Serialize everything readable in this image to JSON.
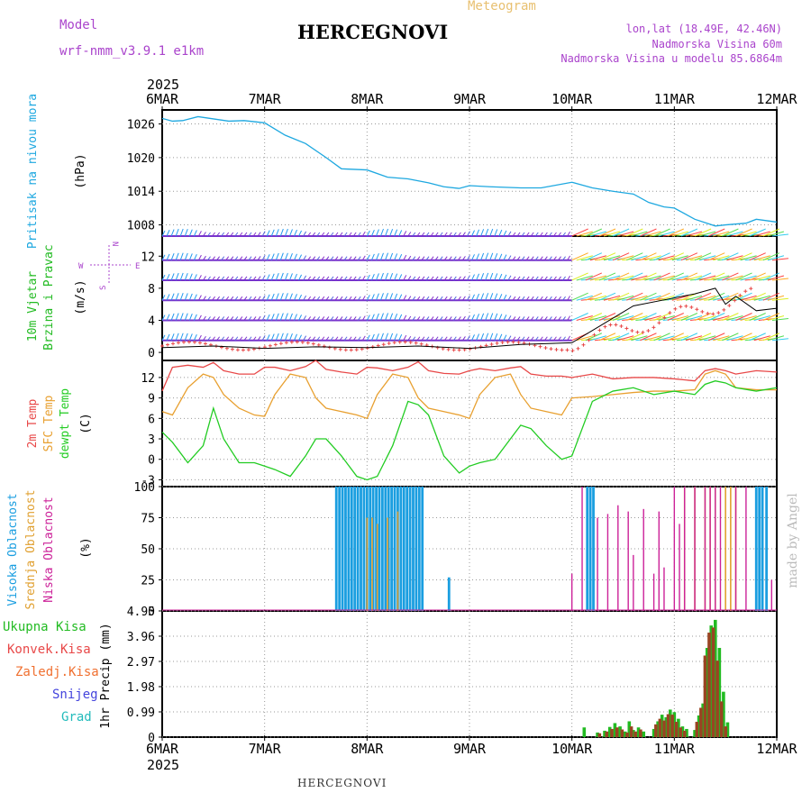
{
  "header": {
    "model_label": "Model",
    "model_name": "wrf-nmm_v3.9.1 e1km",
    "meteogram_label": "Meteogram",
    "station": "HERCEGNOVI",
    "lonlat": "lon,lat (18.49E, 42.46N)",
    "elevation": "Nadmorska Visina 60m",
    "model_elevation": "Nadmorska Visina u modelu 85.6864m",
    "footer_station": "HERCEGNOVI",
    "watermark": "made by Angel"
  },
  "colors": {
    "pressure": "#1ea8e0",
    "wind_label": "#22bb22",
    "t2m": "#e84848",
    "sfc": "#e8a030",
    "dew": "#22cc22",
    "high_cloud": "#1a9ee0",
    "mid_cloud": "#e0a030",
    "low_cloud": "#cc2299",
    "total_rain": "#22bb22",
    "conv_rain": "#e84848",
    "frozen_rain": "#f07030",
    "snow": "#4444dd",
    "hail": "#22bbbb",
    "compass": "#aa44cc"
  },
  "time_axis": {
    "top_year": "2025",
    "bottom_year": "2025",
    "labels": [
      "6MAR",
      "7MAR",
      "8MAR",
      "9MAR",
      "10MAR",
      "11MAR",
      "12MAR"
    ]
  },
  "chart_data": [
    {
      "type": "line",
      "panel": "pressure",
      "ylabel_series": "Pritisak na nivou mora",
      "ylabel_unit": "(hPa)",
      "yticks": [
        "1026",
        "1020",
        "1014",
        "1008"
      ],
      "ylim": [
        1006,
        1028.5
      ],
      "x_days": [
        0,
        0.1,
        0.2,
        0.35,
        0.5,
        0.65,
        0.8,
        1.0,
        1.2,
        1.4,
        1.6,
        1.75,
        2.0,
        2.2,
        2.4,
        2.6,
        2.75,
        2.9,
        3.0,
        3.2,
        3.5,
        3.7,
        4.0,
        4.2,
        4.4,
        4.6,
        4.75,
        4.9,
        5.0,
        5.2,
        5.4,
        5.5,
        5.7,
        5.8,
        6.0
      ],
      "series": [
        {
          "values": [
            1027,
            1026.5,
            1026.6,
            1027.3,
            1026.9,
            1026.5,
            1026.6,
            1026.2,
            1024.0,
            1022.5,
            1020.0,
            1018.0,
            1017.8,
            1016.5,
            1016.2,
            1015.5,
            1014.8,
            1014.5,
            1015.0,
            1014.8,
            1014.6,
            1014.6,
            1015.6,
            1014.6,
            1014.0,
            1013.5,
            1012.0,
            1011.2,
            1011.0,
            1009.0,
            1007.8,
            1008.0,
            1008.3,
            1009.0,
            1008.5
          ]
        }
      ]
    },
    {
      "type": "line",
      "panel": "wind",
      "ylabel_series": "10m Vjetar",
      "ylabel_series2": "Brzina i Pravac",
      "ylabel_unit": "(m/s)",
      "compass": {
        "n": "N",
        "w": "W",
        "e": "E",
        "s": "S"
      },
      "yticks": [
        "12",
        "8",
        "4",
        "0"
      ],
      "ylim": [
        -1,
        14.5
      ],
      "x_days": [
        0,
        0.5,
        1.0,
        1.5,
        2.0,
        2.5,
        3.0,
        3.5,
        4.0,
        4.3,
        4.6,
        5.0,
        5.2,
        5.4,
        5.5,
        5.6,
        5.8,
        6.0
      ],
      "series": [
        {
          "name": "speed_black",
          "values": [
            0.6,
            0.8,
            0.5,
            0.7,
            0.6,
            0.8,
            0.5,
            1.0,
            1.2,
            3.5,
            5.8,
            6.8,
            7.3,
            8.0,
            6.0,
            7.0,
            5.2,
            5.5
          ]
        }
      ]
    },
    {
      "type": "line",
      "panel": "temperature",
      "ylabel_series": "2m Temp",
      "ylabel_series2": "SFC Temp",
      "ylabel_series3": "dewpt Temp",
      "ylabel_unit": "(C)",
      "yticks": [
        "12",
        "9",
        "6",
        "3",
        "0",
        "-3"
      ],
      "ylim": [
        -4,
        14.5
      ],
      "x_days": [
        0,
        0.1,
        0.25,
        0.4,
        0.5,
        0.6,
        0.75,
        0.9,
        1.0,
        1.1,
        1.25,
        1.4,
        1.5,
        1.6,
        1.75,
        1.9,
        2.0,
        2.1,
        2.25,
        2.4,
        2.5,
        2.6,
        2.75,
        2.9,
        3.0,
        3.1,
        3.25,
        3.4,
        3.5,
        3.6,
        3.75,
        3.9,
        4.0,
        4.2,
        4.4,
        4.6,
        4.8,
        5.0,
        5.2,
        5.3,
        5.4,
        5.5,
        5.6,
        5.8,
        6.0
      ],
      "series": [
        {
          "name": "2m Temp",
          "values": [
            10,
            13.5,
            13.8,
            13.5,
            14.2,
            13.0,
            12.5,
            12.5,
            13.5,
            13.5,
            13.0,
            13.6,
            14.5,
            13.2,
            12.8,
            12.5,
            13.5,
            13.4,
            13.0,
            13.5,
            14.3,
            13.0,
            12.6,
            12.5,
            13.0,
            13.3,
            13.0,
            13.4,
            13.6,
            12.5,
            12.2,
            12.2,
            12.0,
            12.5,
            11.8,
            12.0,
            12.0,
            11.8,
            11.5,
            13.0,
            13.3,
            13.0,
            12.5,
            13.0,
            12.8
          ]
        },
        {
          "name": "SFC Temp",
          "values": [
            7,
            6.5,
            10.5,
            12.5,
            12.0,
            9.5,
            7.5,
            6.5,
            6.3,
            9.5,
            12.5,
            12.0,
            9.0,
            7.5,
            7.0,
            6.5,
            6.0,
            9.5,
            12.5,
            12.0,
            9.0,
            7.5,
            7.0,
            6.5,
            6.0,
            9.5,
            12.0,
            12.5,
            9.5,
            7.5,
            7.0,
            6.5,
            9.0,
            9.2,
            9.5,
            9.8,
            10.0,
            10.0,
            10.2,
            12.5,
            13.0,
            12.5,
            10.5,
            10.2,
            10.2
          ]
        },
        {
          "name": "dewpt Temp",
          "values": [
            4,
            2.5,
            -0.5,
            2.0,
            7.5,
            3.0,
            -0.5,
            -0.5,
            -1.0,
            -1.5,
            -2.5,
            0.5,
            3.0,
            3.0,
            0.5,
            -2.5,
            -3.0,
            -2.5,
            2.0,
            8.5,
            8.0,
            6.5,
            0.5,
            -2.0,
            -1.0,
            -0.5,
            0.0,
            3.0,
            5.0,
            4.5,
            2.0,
            0.0,
            0.5,
            8.5,
            10.0,
            10.5,
            9.5,
            10.0,
            9.5,
            11.0,
            11.5,
            11.2,
            10.5,
            10.0,
            10.5
          ]
        }
      ]
    },
    {
      "type": "bar",
      "panel": "cloud",
      "ylabel_series": "Visoka Oblacnost",
      "ylabel_series2": "Srednja Oblacnost",
      "ylabel_series3": "Niska Oblacnost",
      "ylabel_unit": "(%)",
      "yticks": [
        "100",
        "75",
        "50",
        "25",
        "0"
      ],
      "ylim": [
        0,
        100
      ],
      "series": [
        {
          "name": "Visoka Oblacnost",
          "x_days": [
            1.7,
            1.73,
            1.76,
            1.79,
            1.82,
            1.85,
            1.88,
            1.91,
            1.94,
            1.97,
            2.0,
            2.03,
            2.06,
            2.09,
            2.12,
            2.15,
            2.18,
            2.21,
            2.24,
            2.27,
            2.3,
            2.33,
            2.36,
            2.39,
            2.42,
            2.45,
            2.48,
            2.51,
            2.54,
            2.8,
            4.15,
            4.18,
            4.21,
            5.8,
            5.83,
            5.86,
            5.9
          ],
          "values": [
            100,
            100,
            100,
            100,
            100,
            100,
            100,
            100,
            100,
            100,
            100,
            100,
            100,
            100,
            100,
            100,
            100,
            100,
            100,
            100,
            100,
            100,
            100,
            100,
            100,
            100,
            100,
            100,
            100,
            27,
            100,
            100,
            100,
            100,
            100,
            100,
            100
          ]
        },
        {
          "name": "Srednja Oblacnost",
          "x_days": [
            2.0,
            2.05,
            2.1,
            2.2,
            2.3,
            5.1,
            5.2,
            5.3,
            5.35,
            5.4,
            5.5,
            5.55,
            5.6
          ],
          "values": [
            75,
            75,
            70,
            75,
            80,
            100,
            100,
            100,
            100,
            100,
            100,
            100,
            100
          ]
        },
        {
          "name": "Niska Oblacnost",
          "x_days": [
            4.0,
            4.1,
            4.25,
            4.35,
            4.45,
            4.55,
            4.6,
            4.7,
            4.8,
            4.85,
            4.9,
            5.0,
            5.05,
            5.1,
            5.2,
            5.3,
            5.35,
            5.4,
            5.45,
            5.6,
            5.7,
            5.95
          ],
          "values": [
            30,
            100,
            75,
            78,
            85,
            80,
            45,
            82,
            30,
            80,
            35,
            100,
            70,
            100,
            100,
            100,
            100,
            100,
            100,
            100,
            100,
            25
          ]
        }
      ]
    },
    {
      "type": "bar",
      "panel": "precip",
      "legend": [
        "Ukupna Kisa",
        "Konvek.Kisa",
        "Zaledj.Kisa",
        "Snijeg",
        "Grad"
      ],
      "ylabel_series": "1hr Precip",
      "ylabel_unit": "(mm)",
      "yticks": [
        "4.95",
        "3.96",
        "2.97",
        "1.98",
        "0.99",
        "0"
      ],
      "ylim": [
        0,
        4.95
      ],
      "series": [
        {
          "name": "Ukupna Kisa",
          "x_days": [
            4.12,
            4.25,
            4.32,
            4.37,
            4.42,
            4.47,
            4.52,
            4.56,
            4.6,
            4.65,
            4.7,
            4.8,
            4.84,
            4.88,
            4.92,
            4.96,
            5.0,
            5.04,
            5.08,
            5.12,
            5.2,
            5.24,
            5.28,
            5.32,
            5.36,
            5.4,
            5.44,
            5.48,
            5.52
          ],
          "values": [
            0.38,
            0.18,
            0.25,
            0.4,
            0.55,
            0.42,
            0.22,
            0.62,
            0.28,
            0.38,
            0.22,
            0.32,
            0.62,
            0.88,
            0.78,
            1.08,
            0.98,
            0.72,
            0.42,
            0.32,
            0.28,
            0.85,
            1.32,
            3.5,
            4.38,
            4.6,
            3.5,
            1.78,
            0.58
          ]
        },
        {
          "name": "Konvek.Kisa",
          "x_days": [
            4.27,
            4.34,
            4.39,
            4.44,
            4.49,
            4.54,
            4.58,
            4.62,
            4.67,
            4.82,
            4.86,
            4.9,
            4.94,
            4.98,
            5.02,
            5.06,
            5.1,
            5.22,
            5.26,
            5.3,
            5.34,
            5.38,
            5.42,
            5.46,
            5.5
          ],
          "values": [
            0.15,
            0.22,
            0.32,
            0.38,
            0.3,
            0.18,
            0.42,
            0.22,
            0.3,
            0.5,
            0.72,
            0.65,
            0.9,
            0.88,
            0.6,
            0.38,
            0.25,
            0.6,
            1.15,
            3.2,
            4.1,
            4.3,
            3.0,
            1.4,
            0.42
          ]
        }
      ]
    }
  ]
}
